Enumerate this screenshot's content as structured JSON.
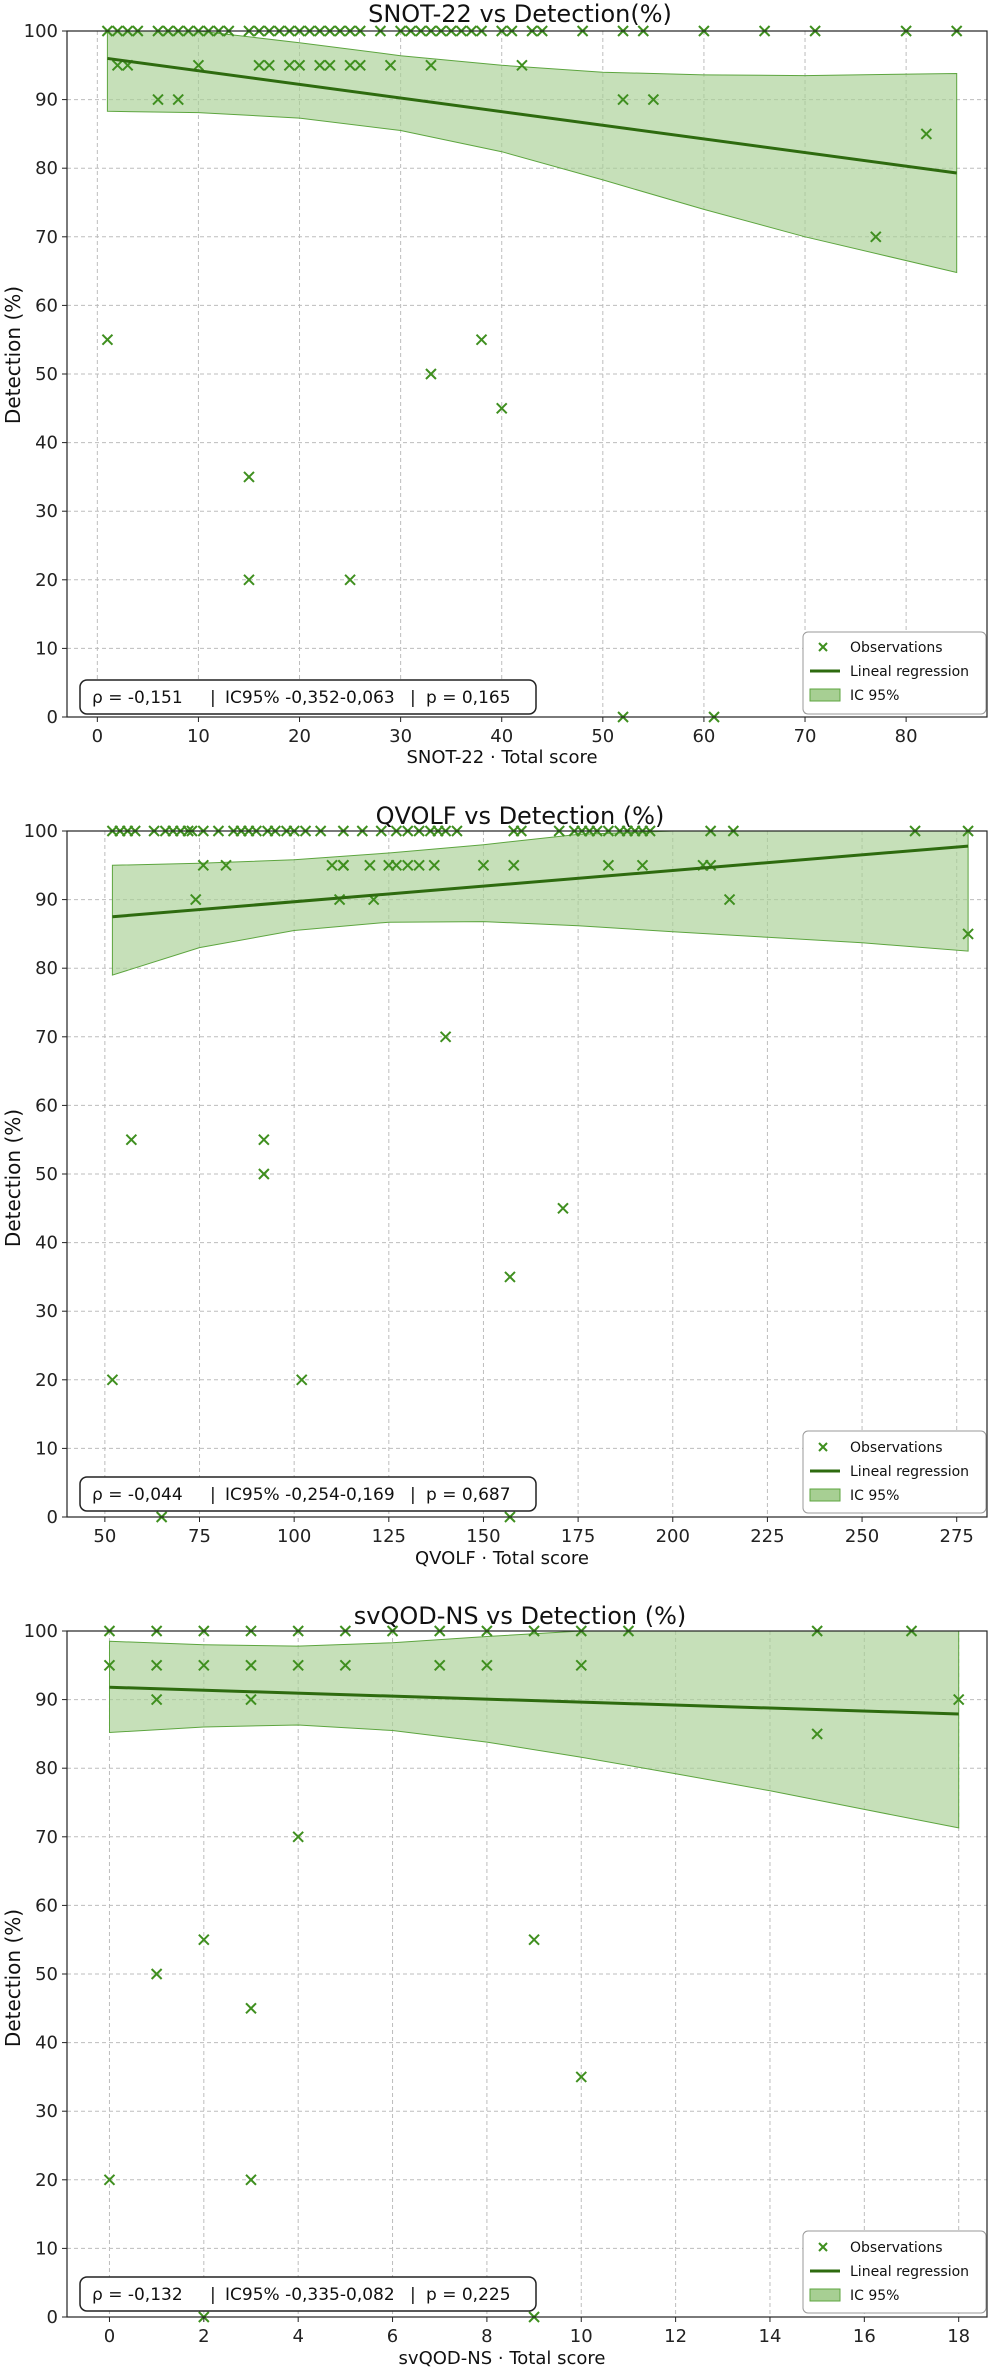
{
  "colors": {
    "marker": "#3f8f1f",
    "line": "#2e6b0f",
    "band_fill": "#a7cf93",
    "band_edge": "#5da53f",
    "grid": "#bdbdbd"
  },
  "chart_data": [
    {
      "type": "scatter",
      "title": "SNOT-22 vs Detection(%)",
      "xlabel": "SNOT-22 · Total score",
      "ylabel": "Detection (%)",
      "xlim": [
        -3,
        88
      ],
      "ylim": [
        0,
        100
      ],
      "xticks": [
        0,
        10,
        20,
        30,
        40,
        50,
        60,
        70,
        80
      ],
      "yticks": [
        0,
        10,
        20,
        30,
        40,
        50,
        60,
        70,
        80,
        90,
        100
      ],
      "x_values": [
        1,
        2,
        3,
        4,
        6,
        7,
        8,
        9,
        10,
        11,
        12,
        13,
        15,
        16,
        17,
        18,
        19,
        20,
        21,
        22,
        23,
        24,
        25,
        26,
        28,
        30,
        31,
        32,
        33,
        34,
        35,
        36,
        37,
        38,
        40,
        41,
        43,
        44,
        48,
        52,
        54,
        60,
        66,
        71,
        80,
        85,
        2,
        3,
        10,
        16,
        17,
        19,
        20,
        22,
        23,
        25,
        26,
        29,
        33,
        42,
        6,
        8,
        52,
        55,
        82,
        77,
        1,
        38,
        33,
        40,
        15,
        15,
        25,
        52,
        61
      ],
      "y_values": [
        100,
        100,
        100,
        100,
        100,
        100,
        100,
        100,
        100,
        100,
        100,
        100,
        100,
        100,
        100,
        100,
        100,
        100,
        100,
        100,
        100,
        100,
        100,
        100,
        100,
        100,
        100,
        100,
        100,
        100,
        100,
        100,
        100,
        100,
        100,
        100,
        100,
        100,
        100,
        100,
        100,
        100,
        100,
        100,
        100,
        100,
        95,
        95,
        95,
        95,
        95,
        95,
        95,
        95,
        95,
        95,
        95,
        95,
        95,
        95,
        90,
        90,
        90,
        90,
        85,
        70,
        55,
        55,
        50,
        45,
        35,
        20,
        20,
        0,
        0
      ],
      "regression_line": {
        "x": [
          1,
          85
        ],
        "y": [
          96,
          79.3
        ]
      },
      "ci_band": {
        "x": [
          1,
          10,
          20,
          30,
          40,
          50,
          60,
          70,
          85
        ],
        "upper": [
          100,
          100,
          98.3,
          96.4,
          95.0,
          94.0,
          93.6,
          93.5,
          93.8
        ],
        "lower": [
          88.3,
          88.1,
          87.3,
          85.5,
          82.4,
          78.3,
          74.0,
          70.0,
          64.8
        ]
      },
      "legend": [
        "Observations",
        "Lineal regression",
        "IC 95%"
      ],
      "legend_position": "bottom-right",
      "stats": {
        "rho": "ρ = -0,151",
        "ci": "IC95% -0,352-0,063",
        "p": "p = 0,165"
      }
    },
    {
      "type": "scatter",
      "title": "QVOLF vs Detection (%)",
      "xlabel": "QVOLF · Total score",
      "ylabel": "Detection (%)",
      "xlim": [
        40,
        283
      ],
      "ylim": [
        0,
        100
      ],
      "xticks": [
        50,
        75,
        100,
        125,
        150,
        175,
        200,
        225,
        250,
        275
      ],
      "yticks": [
        0,
        10,
        20,
        30,
        40,
        50,
        60,
        70,
        80,
        90,
        100
      ],
      "x_values": [
        52,
        54,
        56,
        58,
        63,
        66,
        68,
        70,
        72,
        73,
        76,
        80,
        84,
        86,
        88,
        90,
        93,
        95,
        98,
        100,
        103,
        107,
        113,
        118,
        123,
        127,
        130,
        133,
        136,
        138,
        140,
        143,
        158,
        160,
        170,
        174,
        176,
        178,
        180,
        183,
        186,
        188,
        190,
        192,
        194,
        210,
        216,
        264,
        278,
        76,
        82,
        110,
        113,
        113,
        120,
        125,
        127,
        130,
        133,
        137,
        150,
        158,
        183,
        192,
        208,
        210,
        74,
        112,
        121,
        215,
        140,
        278,
        57,
        92,
        92,
        171,
        157,
        52,
        102,
        65,
        157
      ],
      "y_values": [
        100,
        100,
        100,
        100,
        100,
        100,
        100,
        100,
        100,
        100,
        100,
        100,
        100,
        100,
        100,
        100,
        100,
        100,
        100,
        100,
        100,
        100,
        100,
        100,
        100,
        100,
        100,
        100,
        100,
        100,
        100,
        100,
        100,
        100,
        100,
        100,
        100,
        100,
        100,
        100,
        100,
        100,
        100,
        100,
        100,
        100,
        100,
        100,
        100,
        95,
        95,
        95,
        95,
        95,
        95,
        95,
        95,
        95,
        95,
        95,
        95,
        95,
        95,
        95,
        95,
        95,
        90,
        90,
        90,
        90,
        70,
        85,
        55,
        55,
        50,
        45,
        35,
        20,
        20,
        0,
        0
      ],
      "regression_line": {
        "x": [
          52,
          278
        ],
        "y": [
          87.5,
          97.8
        ]
      },
      "ci_band": {
        "x": [
          52,
          75,
          100,
          125,
          150,
          175,
          200,
          225,
          250,
          278
        ],
        "upper": [
          95.0,
          95.3,
          95.8,
          96.8,
          98.0,
          99.5,
          100,
          100,
          100,
          100
        ],
        "lower": [
          79.0,
          83.0,
          85.5,
          86.7,
          86.8,
          86.2,
          85.3,
          84.5,
          83.7,
          82.5
        ]
      },
      "legend": [
        "Observations",
        "Lineal regression",
        "IC 95%"
      ],
      "legend_position": "bottom-right",
      "stats": {
        "rho": "ρ = -0,044",
        "ci": "IC95% -0,254-0,169",
        "p": "p = 0,687"
      }
    },
    {
      "type": "scatter",
      "title": "svQOD-NS vs Detection (%)",
      "xlabel": "svQOD-NS · Total score",
      "ylabel": "Detection (%)",
      "xlim": [
        -0.9,
        18.6
      ],
      "ylim": [
        0,
        100
      ],
      "xticks": [
        0,
        2,
        4,
        6,
        8,
        10,
        12,
        14,
        16,
        18
      ],
      "yticks": [
        0,
        10,
        20,
        30,
        40,
        50,
        60,
        70,
        80,
        90,
        100
      ],
      "x_values": [
        0,
        1,
        2,
        3,
        4,
        5,
        6,
        7,
        8,
        9,
        10,
        11,
        15,
        17,
        0,
        1,
        2,
        3,
        4,
        5,
        7,
        8,
        10,
        1,
        3,
        18,
        15,
        4,
        2,
        9,
        1,
        3,
        10,
        0,
        3,
        2,
        9
      ],
      "y_values": [
        100,
        100,
        100,
        100,
        100,
        100,
        100,
        100,
        100,
        100,
        100,
        100,
        100,
        100,
        95,
        95,
        95,
        95,
        95,
        95,
        95,
        95,
        95,
        90,
        90,
        90,
        85,
        70,
        55,
        55,
        50,
        45,
        35,
        20,
        20,
        0,
        0
      ],
      "regression_line": {
        "x": [
          0,
          18
        ],
        "y": [
          91.8,
          87.9
        ]
      },
      "ci_band": {
        "x": [
          0,
          2,
          4,
          6,
          8,
          10,
          12,
          14,
          16,
          18
        ],
        "upper": [
          98.5,
          98.0,
          97.8,
          98.3,
          99.2,
          100,
          100,
          100,
          100,
          100
        ],
        "lower": [
          85.2,
          86.0,
          86.3,
          85.5,
          83.8,
          81.6,
          79.2,
          76.7,
          74.0,
          71.3
        ]
      },
      "legend": [
        "Observations",
        "Lineal regression",
        "IC 95%"
      ],
      "legend_position": "bottom-right",
      "stats": {
        "rho": "ρ = -0,132",
        "ci": "IC95% -0,335-0,082",
        "p": "p = 0,225"
      }
    }
  ]
}
